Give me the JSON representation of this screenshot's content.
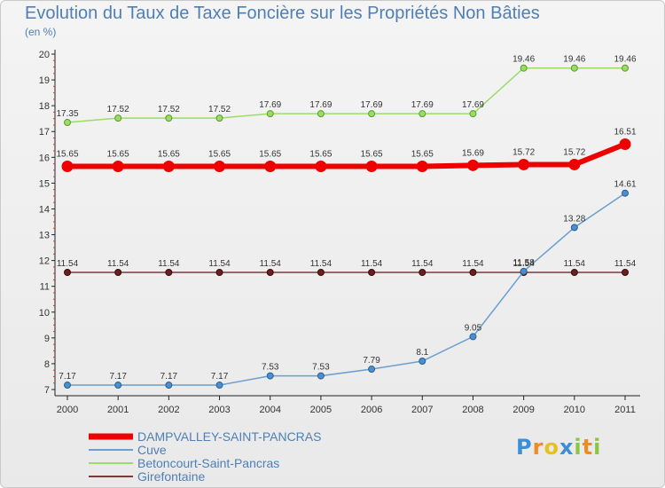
{
  "chart_data": {
    "type": "line",
    "title": "Evolution du Taux de Taxe Foncière sur les Propriétés Non Bâties",
    "subtitle": "(en %)",
    "xlabel": "",
    "ylabel": "",
    "categories": [
      "2000",
      "2001",
      "2002",
      "2003",
      "2004",
      "2005",
      "2006",
      "2007",
      "2008",
      "2009",
      "2010",
      "2011"
    ],
    "ylim": [
      7,
      20
    ],
    "yticks": [
      7,
      8,
      9,
      10,
      11,
      12,
      13,
      14,
      15,
      16,
      17,
      18,
      19,
      20
    ],
    "grid": false,
    "legend_position": "bottom-left",
    "series": [
      {
        "name": "DAMPVALLEY-SAINT-PANCRAS",
        "color": "#ee0000",
        "values": [
          15.65,
          15.65,
          15.65,
          15.65,
          15.65,
          15.65,
          15.65,
          15.65,
          15.69,
          15.72,
          15.72,
          16.51
        ],
        "labels": [
          "15.65",
          "15.65",
          "15.65",
          "15.65",
          "15.65",
          "15.65",
          "15.65",
          "15.65",
          "15.69",
          "15.72",
          "15.72",
          "16.51"
        ]
      },
      {
        "name": "Cuve",
        "color": "#6a9fd0",
        "values": [
          7.17,
          7.17,
          7.17,
          7.17,
          7.53,
          7.53,
          7.79,
          8.1,
          9.05,
          11.58,
          13.28,
          14.61
        ],
        "labels": [
          "7.17",
          "7.17",
          "7.17",
          "7.17",
          "7.53",
          "7.53",
          "7.79",
          "8.1",
          "9.05",
          "11.58",
          "13.28",
          "14.61"
        ]
      },
      {
        "name": "Betoncourt-Saint-Pancras",
        "color": "#99dd66",
        "values": [
          17.35,
          17.52,
          17.52,
          17.52,
          17.69,
          17.69,
          17.69,
          17.69,
          17.69,
          19.46,
          19.46,
          19.46
        ],
        "labels": [
          "17.35",
          "17.52",
          "17.52",
          "17.52",
          "17.69",
          "17.69",
          "17.69",
          "17.69",
          "17.69",
          "19.46",
          "19.46",
          "19.46"
        ]
      },
      {
        "name": "Girefontaine",
        "color": "#7a3b3b",
        "values": [
          11.54,
          11.54,
          11.54,
          11.54,
          11.54,
          11.54,
          11.54,
          11.54,
          11.54,
          11.54,
          11.54,
          11.54
        ],
        "labels": [
          "11.54",
          "11.54",
          "11.54",
          "11.54",
          "11.54",
          "11.54",
          "11.54",
          "11.54",
          "11.54",
          "11.54",
          "11.54",
          "11.54"
        ]
      }
    ]
  },
  "branding": {
    "logo_letters": [
      "P",
      "r",
      "o",
      "x",
      "i",
      "t",
      "i"
    ],
    "logo_colors": [
      "#3a8fd6",
      "#f08c1e",
      "#e8c21c",
      "#3a8fd6",
      "#8cc63f",
      "#f08c1e",
      "#8cc63f"
    ]
  }
}
